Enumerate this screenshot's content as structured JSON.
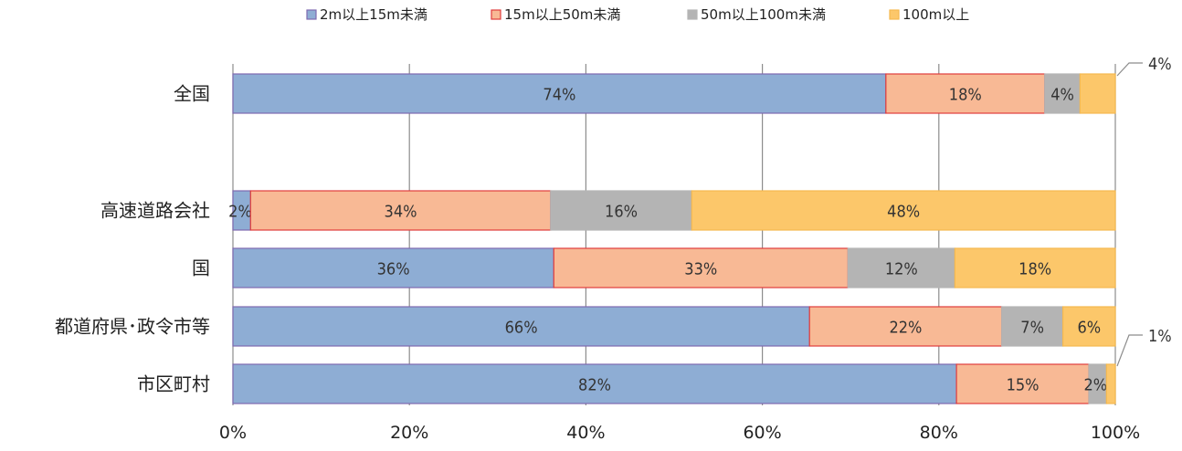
{
  "chart_data": {
    "type": "bar",
    "orientation": "horizontal",
    "stacked": "percent",
    "title": "",
    "xlabel": "",
    "ylabel": "",
    "xlim": [
      0,
      100
    ],
    "x_ticks": [
      "0%",
      "20%",
      "40%",
      "60%",
      "80%",
      "100%"
    ],
    "grid": "vertical",
    "legend_position": "top",
    "categories": [
      "全国",
      "高速道路会社",
      "国",
      "都道府県･政令市等",
      "市区町村"
    ],
    "series": [
      {
        "name": "2m以上15m未満",
        "color": "#8eadd4",
        "stroke": "#7f6ab0",
        "values": [
          74,
          2,
          36,
          66,
          82
        ],
        "labels": [
          "74%",
          "2%",
          "36%",
          "66%",
          "82%"
        ]
      },
      {
        "name": "15m以上50m未満",
        "color": "#f8b995",
        "stroke": "#e03c3c",
        "values": [
          18,
          34,
          33,
          22,
          15
        ],
        "labels": [
          "18%",
          "34%",
          "33%",
          "22%",
          "15%"
        ]
      },
      {
        "name": "50m以上100m未満",
        "color": "#b4b4b4",
        "stroke": "#b4b4b4",
        "values": [
          4,
          16,
          12,
          7,
          2
        ],
        "labels": [
          "4%",
          "16%",
          "12%",
          "7%",
          "2%"
        ]
      },
      {
        "name": "100m以上",
        "color": "#fcc76a",
        "stroke": "#f5b94f",
        "values": [
          4,
          48,
          18,
          6,
          1
        ],
        "labels": [
          "4%",
          "48%",
          "18%",
          "6%",
          "1%"
        ]
      }
    ],
    "callouts": [
      {
        "category": "全国",
        "series": "100m以上",
        "text": "4%"
      },
      {
        "category": "市区町村",
        "series": "100m以上",
        "text": "1%"
      }
    ]
  }
}
